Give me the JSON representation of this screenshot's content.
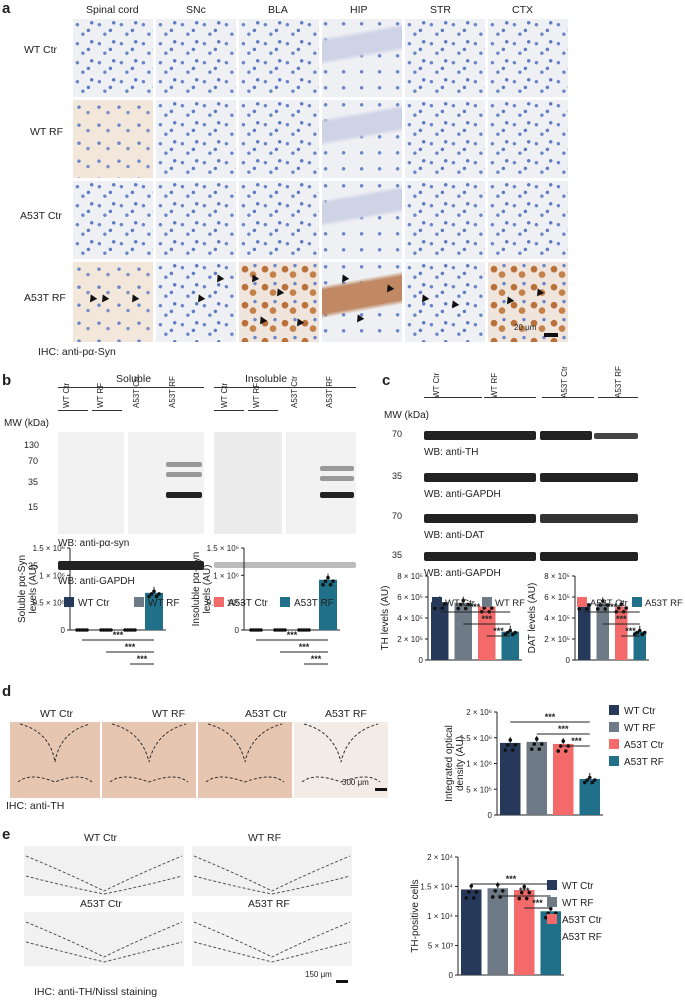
{
  "panels": {
    "a": "a",
    "b": "b",
    "c": "c",
    "d": "d",
    "e": "e"
  },
  "a": {
    "columns": [
      "Spinal cord",
      "SNc",
      "BLA",
      "HIP",
      "STR",
      "CTX"
    ],
    "rows": [
      "WT Ctr",
      "WT RF",
      "A53T Ctr",
      "A53T RF"
    ],
    "scale": "20 μm",
    "caption": "IHC: anti-pα-Syn"
  },
  "b": {
    "soluble": "Soluble",
    "insoluble": "Insoluble",
    "lanes": [
      "WT Ctr",
      "WT RF",
      "A53T Ctr",
      "A53T RF",
      "WT Ctr",
      "WT RF",
      "A53T Ctr",
      "A53T RF"
    ],
    "mw_label": "MW (kDa)",
    "mw": [
      "130",
      "70",
      "35",
      "15"
    ],
    "mw_gapdh": "35",
    "wb1": "WB: anti-pα-syn",
    "wb2": "WB: anti-GAPDH"
  },
  "c": {
    "mw_label": "MW (kDa)",
    "lanes": [
      "WT Ctr",
      "WT RF",
      "A53T Ctr",
      "A53T RF"
    ],
    "blots": [
      {
        "mw": "70",
        "label": "WB: anti-TH"
      },
      {
        "mw": "35",
        "label": "WB: anti-GAPDH"
      },
      {
        "mw": "70",
        "label": "WB: anti-DAT"
      },
      {
        "mw": "35",
        "label": "WB: anti-GAPDH"
      }
    ]
  },
  "d": {
    "images": [
      "WT Ctr",
      "WT RF",
      "A53T Ctr",
      "A53T RF"
    ],
    "scale": "300 μm",
    "caption": "IHC: anti-TH"
  },
  "e": {
    "images": [
      "WT Ctr",
      "WT RF",
      "A53T Ctr",
      "A53T RF"
    ],
    "scale": "150 μm",
    "caption": "IHC: anti-TH/Nissl staining"
  },
  "legend": [
    {
      "name": "WT Ctr",
      "color": "#26395a"
    },
    {
      "name": "WT RF",
      "color": "#6e7a85"
    },
    {
      "name": "A53T Ctr",
      "color": "#f46a6a"
    },
    {
      "name": "A53T RF",
      "color": "#21708a"
    }
  ],
  "sig": "***",
  "chart_data": [
    {
      "type": "bar",
      "id": "soluble",
      "ylabel": "Soluble pα-Syn levels (AU)",
      "ylim": [
        0,
        1500000
      ],
      "yticks": [
        "0",
        "0.5 × 10⁶",
        "1 × 10⁶",
        "1.5 × 10⁶"
      ],
      "values": [
        0,
        0,
        0,
        680000
      ]
    },
    {
      "type": "bar",
      "id": "insoluble",
      "ylabel": "Insoluble pα-Syn levels (AU)",
      "ylim": [
        0,
        1500000
      ],
      "yticks": [
        "0",
        "0.5 × 10⁶",
        "1 × 10⁶",
        "1.5 × 10⁶"
      ],
      "values": [
        0,
        0,
        0,
        920000
      ]
    },
    {
      "type": "bar",
      "id": "th",
      "ylabel": "TH levels (AU)",
      "ylim": [
        0,
        800000
      ],
      "yticks": [
        "0",
        "2 × 10⁵",
        "4 × 10⁵",
        "6 × 10⁵",
        "8 × 10⁵"
      ],
      "values": [
        550000,
        545000,
        510000,
        270000
      ]
    },
    {
      "type": "bar",
      "id": "dat",
      "ylabel": "DAT levels (AU)",
      "ylim": [
        0,
        800000
      ],
      "yticks": [
        "0",
        "2 × 10⁵",
        "4 × 10⁵",
        "6 × 10⁵",
        "8 × 10⁵"
      ],
      "values": [
        540000,
        540000,
        510000,
        270000
      ]
    },
    {
      "type": "bar",
      "id": "iod",
      "ylabel": "Integrated optical density (AU)",
      "ylim": [
        0,
        2000000
      ],
      "yticks": [
        "0",
        "5 × 10⁵",
        "1 × 10⁶",
        "1.5 × 10⁶",
        "2 × 10⁶"
      ],
      "values": [
        1400000,
        1420000,
        1380000,
        700000
      ]
    },
    {
      "type": "bar",
      "id": "thcells",
      "ylabel": "TH-positive cells",
      "ylim": [
        0,
        20000
      ],
      "yticks": [
        "0",
        "5 × 10³",
        "1 × 10⁴",
        "1.5 × 10⁴",
        "2 × 10⁴"
      ],
      "values": [
        14500,
        14700,
        14400,
        10800
      ]
    }
  ]
}
